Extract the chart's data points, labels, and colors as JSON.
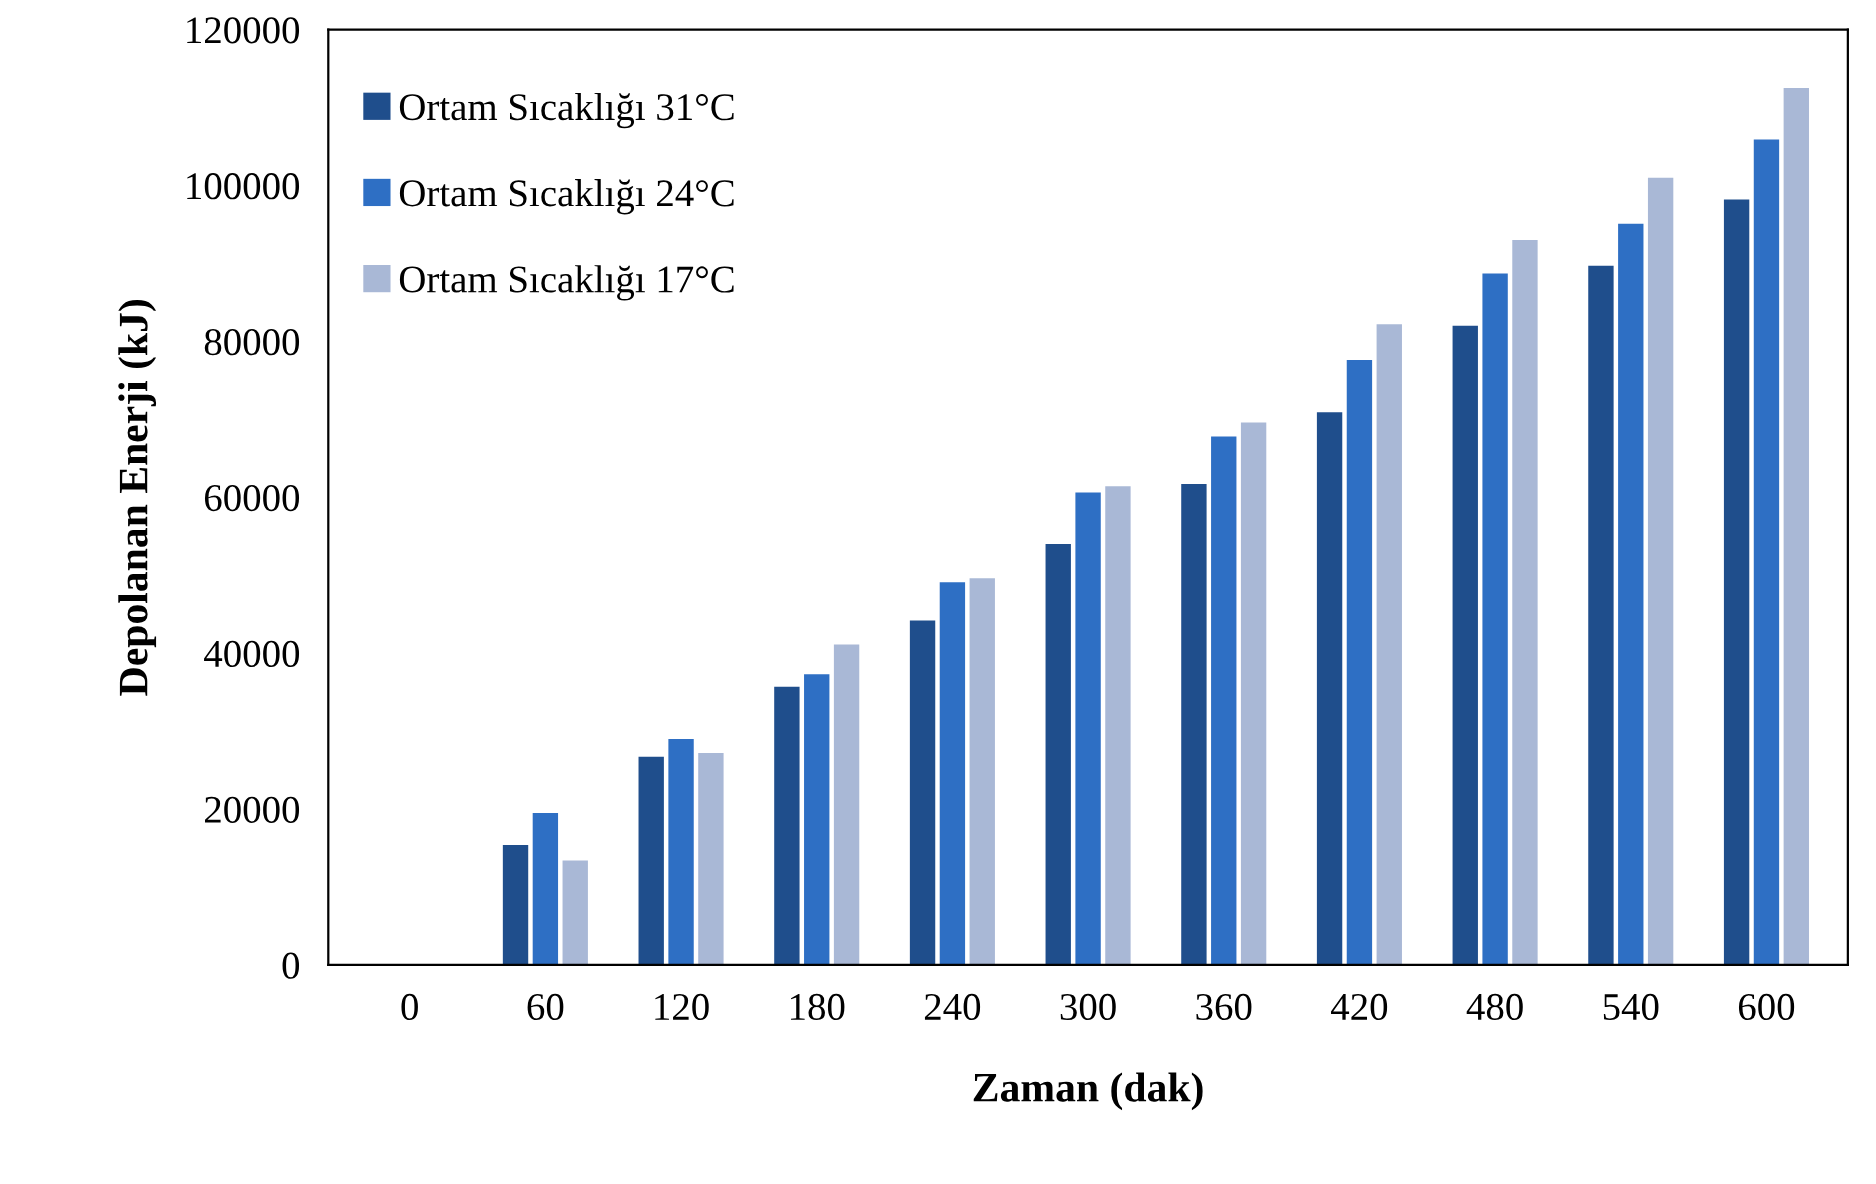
{
  "chart_data": {
    "type": "bar",
    "xlabel": "Zaman (dak)",
    "ylabel": "Depolanan Enerji (kJ)",
    "categories": [
      "0",
      "60",
      "120",
      "180",
      "240",
      "300",
      "360",
      "420",
      "480",
      "540",
      "600"
    ],
    "series": [
      {
        "name": "Ortam Sıcaklığı 31°C",
        "color": "#1f4e8c",
        "values": [
          0,
          15400,
          26700,
          35700,
          44200,
          54000,
          61700,
          70900,
          82000,
          89700,
          98200
        ]
      },
      {
        "name": "Ortam Sıcaklığı 24°C",
        "color": "#2e6fc4",
        "values": [
          0,
          19500,
          29000,
          37300,
          49100,
          60600,
          67800,
          77600,
          88700,
          95100,
          105900
        ]
      },
      {
        "name": "Ortam Sıcaklığı 17°C",
        "color": "#a9b8d6",
        "values": [
          0,
          13400,
          27200,
          41100,
          49600,
          61400,
          69600,
          82200,
          93000,
          101000,
          112500
        ]
      }
    ],
    "ylim": [
      0,
      120000
    ],
    "yticks": [
      0,
      20000,
      40000,
      60000,
      80000,
      100000,
      120000
    ],
    "grid": false,
    "legend": "top left"
  }
}
